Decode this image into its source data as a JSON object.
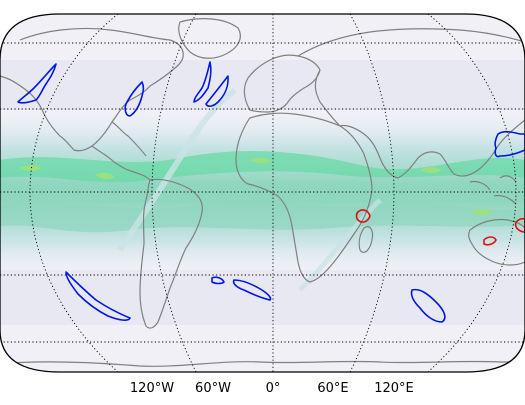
{
  "map": {
    "projection": "robinson",
    "colors": {
      "background_field": "#f1f0f7",
      "band_light": "#c9e3e6",
      "band_mid": "#8fd6bf",
      "band_strong": "#6ad9a6",
      "band_peak": "#9fe07a",
      "coastline": "#808080",
      "contour_low": "#0018e6",
      "contour_high": "#e01010",
      "gridline": "#000000"
    },
    "gridlines": {
      "meridians_deg": [
        -120,
        -60,
        0,
        60,
        120
      ],
      "parallels_deg": [
        -60,
        -30,
        0,
        30,
        60
      ]
    },
    "longitude_labels": [
      "120°W",
      "60°W",
      "0°",
      "60°E",
      "120°E"
    ]
  }
}
